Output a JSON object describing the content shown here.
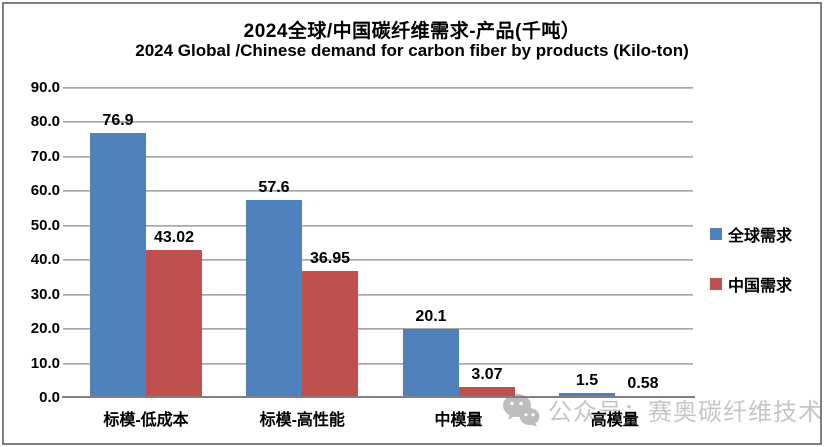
{
  "title": {
    "line1": "2024全球/中国碳纤维需求-产品(千吨）",
    "line2": "2024 Global /Chinese demand for carbon fiber by products (Kilo-ton)"
  },
  "chart_data": {
    "type": "bar",
    "categories": [
      "标模-低成本",
      "标模-高性能",
      "中模量",
      "高模量"
    ],
    "series": [
      {
        "name": "全球需求",
        "color": "#4F81BD",
        "values": [
          76.9,
          57.6,
          20.1,
          1.5
        ],
        "labels": [
          "76.9",
          "57.6",
          "20.1",
          "1.5"
        ]
      },
      {
        "name": "中国需求",
        "color": "#C0504D",
        "values": [
          43.02,
          36.95,
          3.07,
          0.58
        ],
        "labels": [
          "43.02",
          "36.95",
          "3.07",
          "0.58"
        ]
      }
    ],
    "ylim": [
      0,
      90
    ],
    "ytick_step": 10,
    "ytick_labels": [
      "0.0",
      "10.0",
      "20.0",
      "30.0",
      "40.0",
      "50.0",
      "60.0",
      "70.0",
      "80.0",
      "90.0"
    ],
    "grid": true,
    "legend_position": "right",
    "data_labels": true
  },
  "watermark": {
    "icon": "wechat-icon",
    "text": "公众号：赛奥碳纤维技术"
  },
  "colors": {
    "series_global": "#4F81BD",
    "series_china": "#C0504D",
    "gridline": "#9a9a9a",
    "axis": "#7f7f7f",
    "border": "#7e7e7e",
    "watermark": "#c6c6c6"
  }
}
